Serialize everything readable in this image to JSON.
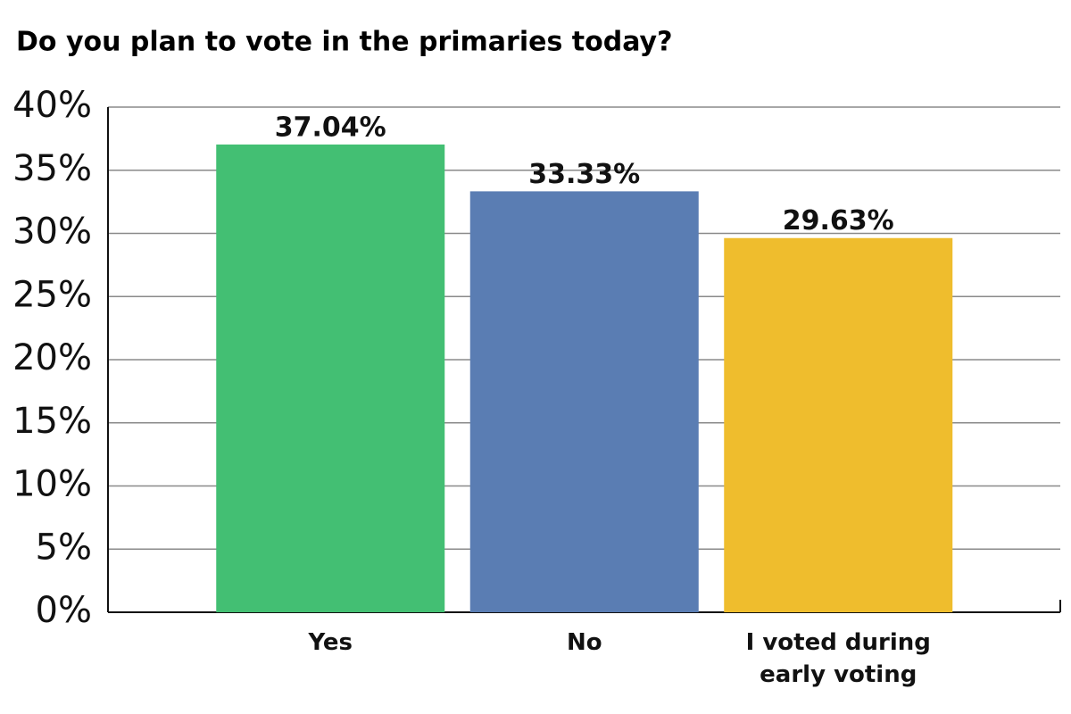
{
  "chart_data": {
    "type": "bar",
    "title": "Do you plan to vote in the primaries today?",
    "categories": [
      "Yes",
      "No",
      "I voted during early voting"
    ],
    "values": [
      37.04,
      33.33,
      29.63
    ],
    "value_labels": [
      "37.04%",
      "33.33%",
      "29.63%"
    ],
    "colors": [
      "#43bf73",
      "#5a7db3",
      "#efbd2d"
    ],
    "ylim": [
      0,
      40
    ],
    "yticks": [
      {
        "value": 0,
        "label": "0%"
      },
      {
        "value": 5,
        "label": "5%"
      },
      {
        "value": 10,
        "label": "10%"
      },
      {
        "value": 15,
        "label": "15%"
      },
      {
        "value": 20,
        "label": "20%"
      },
      {
        "value": 25,
        "label": "25%"
      },
      {
        "value": 30,
        "label": "30%"
      },
      {
        "value": 35,
        "label": "35%"
      },
      {
        "value": 40,
        "label": "40%"
      }
    ],
    "grid": true
  }
}
